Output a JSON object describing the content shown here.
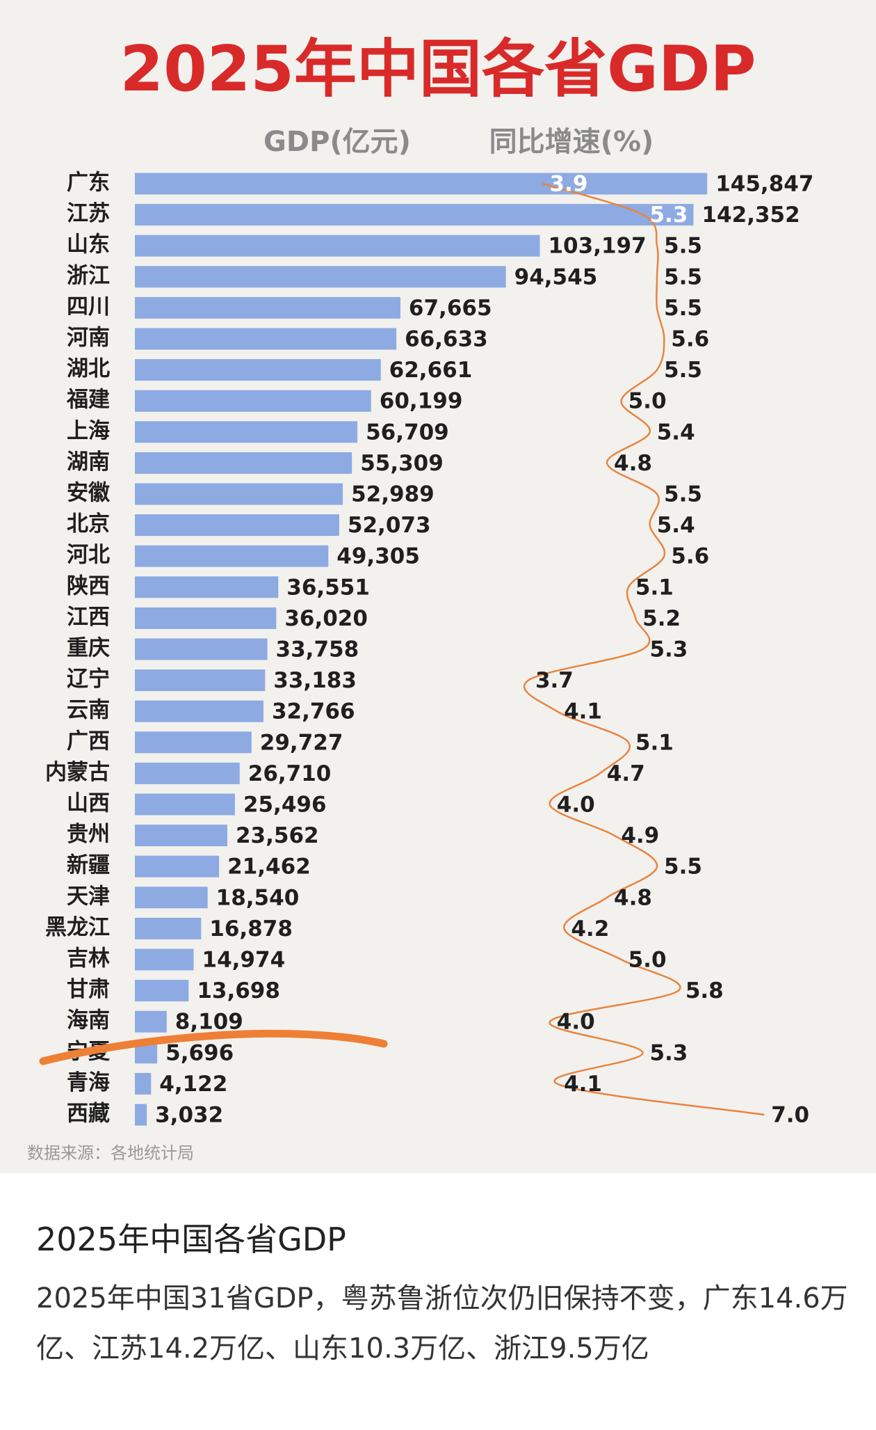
{
  "chart_data": {
    "type": "bar-line",
    "title": "2025年中国各省GDP",
    "categories": [
      "广东",
      "江苏",
      "山东",
      "浙江",
      "四川",
      "河南",
      "湖北",
      "福建",
      "上海",
      "湖南",
      "安徽",
      "北京",
      "河北",
      "陕西",
      "江西",
      "重庆",
      "辽宁",
      "云南",
      "广西",
      "内蒙古",
      "山西",
      "贵州",
      "新疆",
      "天津",
      "黑龙江",
      "吉林",
      "甘肃",
      "海南",
      "宁夏",
      "青海",
      "西藏"
    ],
    "series": [
      {
        "name": "GDP(亿元)",
        "type": "bar",
        "color": "#8eaae2",
        "values": [
          145847,
          142352,
          103197,
          94545,
          67665,
          66633,
          62661,
          60199,
          56709,
          55309,
          52989,
          52073,
          49305,
          36551,
          36020,
          33758,
          33183,
          32766,
          29727,
          26710,
          25496,
          23562,
          21462,
          18540,
          16878,
          14974,
          13698,
          8109,
          5696,
          4122,
          3032
        ],
        "value_labels": [
          "145,847",
          "142,352",
          "103,197",
          "94,545",
          "67,665",
          "66,633",
          "62,661",
          "60,199",
          "56,709",
          "55,309",
          "52,989",
          "52,073",
          "49,305",
          "36,551",
          "36,020",
          "33,758",
          "33,183",
          "32,766",
          "29,727",
          "26,710",
          "25,496",
          "23,562",
          "21,462",
          "18,540",
          "16,878",
          "14,974",
          "13,698",
          "8,109",
          "5,696",
          "4,122",
          "3,032"
        ]
      },
      {
        "name": "同比增速(%)",
        "type": "line",
        "axis": "x2",
        "color": "#e8843f",
        "values": [
          3.9,
          5.3,
          5.5,
          5.5,
          5.5,
          5.6,
          5.5,
          5.0,
          5.4,
          4.8,
          5.5,
          5.4,
          5.6,
          5.1,
          5.2,
          5.3,
          3.7,
          4.1,
          5.1,
          4.7,
          4.0,
          4.9,
          5.5,
          4.8,
          4.2,
          5.0,
          5.8,
          4.0,
          5.3,
          4.1,
          7.0
        ],
        "value_labels": [
          "3.9",
          "5.3",
          "5.5",
          "5.5",
          "5.5",
          "5.6",
          "5.5",
          "5.0",
          "5.4",
          "4.8",
          "5.5",
          "5.4",
          "5.6",
          "5.1",
          "5.2",
          "5.3",
          "3.7",
          "4.1",
          "5.1",
          "4.7",
          "4.0",
          "4.9",
          "5.5",
          "4.8",
          "4.2",
          "5.0",
          "5.8",
          "4.0",
          "5.3",
          "4.1",
          "7.0"
        ]
      }
    ],
    "xlim": [
      0,
      180000
    ],
    "x2lim": [
      3.0,
      8.0
    ],
    "source": "数据来源：各地统计局"
  },
  "post": {
    "title": "2025年中国各省GDP",
    "body": "2025年中国31省GDP，粤苏鲁浙位次仍旧保持不变，广东14.6万亿、江苏14.2万亿、山东10.3万亿、浙江9.5万亿"
  }
}
